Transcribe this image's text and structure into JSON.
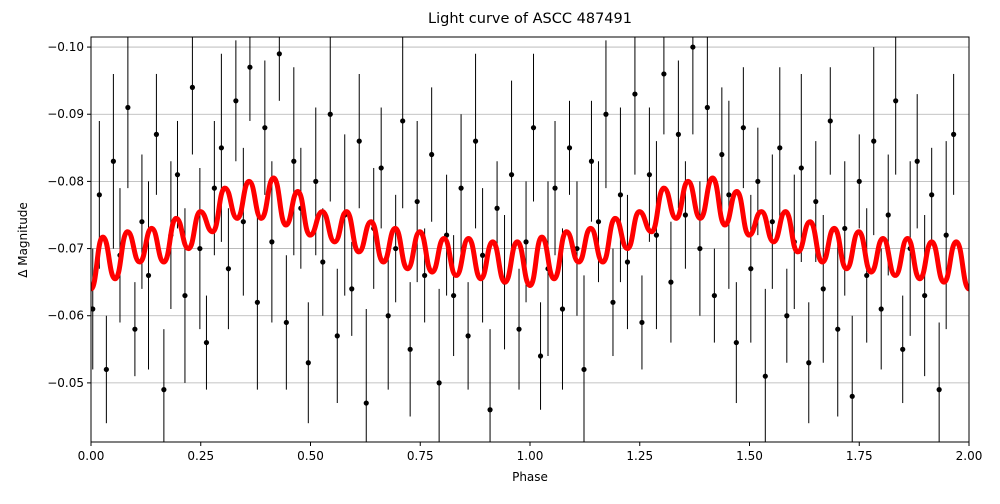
{
  "chart_data": {
    "type": "errorbar-scatter",
    "title": "Light curve of ASCC 487491",
    "xlabel": "Phase",
    "ylabel": "Δ Magnitude",
    "xlim": [
      0,
      2
    ],
    "ylim": [
      -0.1015,
      -0.0412
    ],
    "y_inverted": true,
    "grid": "y",
    "xticks": [
      {
        "value": 0,
        "label": "0.00"
      },
      {
        "value": 0.25,
        "label": "0.25"
      },
      {
        "value": 0.5,
        "label": "0.50"
      },
      {
        "value": 0.75,
        "label": "0.75"
      },
      {
        "value": 1,
        "label": "1.00"
      },
      {
        "value": 1.25,
        "label": "1.25"
      },
      {
        "value": 1.5,
        "label": "1.50"
      },
      {
        "value": 1.75,
        "label": "1.75"
      },
      {
        "value": 2,
        "label": "2.00"
      }
    ],
    "yticks": [
      {
        "value": -0.1,
        "label": "−0.10"
      },
      {
        "value": -0.09,
        "label": "−0.09"
      },
      {
        "value": -0.08,
        "label": "−0.08"
      },
      {
        "value": -0.07,
        "label": "−0.07"
      },
      {
        "value": -0.06,
        "label": "−0.06"
      },
      {
        "value": -0.05,
        "label": "−0.05"
      }
    ],
    "points": {
      "color": "#000000",
      "x": [
        0.004,
        0.019,
        0.035,
        0.051,
        0.066,
        0.084,
        0.1,
        0.116,
        0.131,
        0.149,
        0.166,
        0.182,
        0.197,
        0.214,
        0.231,
        0.248,
        0.263,
        0.281,
        0.297,
        0.313,
        0.33,
        0.347,
        0.362,
        0.379,
        0.396,
        0.412,
        0.429,
        0.445,
        0.462,
        0.478,
        0.495,
        0.512,
        0.528,
        0.545,
        0.561,
        0.578,
        0.594,
        0.611,
        0.627,
        0.644,
        0.661,
        0.677,
        0.694,
        0.71,
        0.727,
        0.743,
        0.76,
        0.776,
        0.793,
        0.81,
        0.826,
        0.843,
        0.859,
        0.876,
        0.892,
        0.909,
        0.925,
        0.942,
        0.958,
        0.975,
        0.991,
        1.008,
        1.024,
        1.041,
        1.057,
        1.074,
        1.09,
        1.107,
        1.123,
        1.14,
        1.156,
        1.173,
        1.189,
        1.206,
        1.222,
        1.239,
        1.255,
        1.272,
        1.288,
        1.305,
        1.321,
        1.338,
        1.354,
        1.371,
        1.387,
        1.404,
        1.42,
        1.437,
        1.453,
        1.47,
        1.486,
        1.503,
        1.519,
        1.536,
        1.552,
        1.569,
        1.585,
        1.602,
        1.618,
        1.635,
        1.651,
        1.668,
        1.684,
        1.701,
        1.717,
        1.734,
        1.75,
        1.767,
        1.783,
        1.8,
        1.816,
        1.833,
        1.849,
        1.866,
        1.882,
        1.899,
        1.915,
        1.932,
        1.948,
        1.965
      ],
      "y": [
        -0.061,
        -0.078,
        -0.052,
        -0.083,
        -0.069,
        -0.091,
        -0.058,
        -0.074,
        -0.066,
        -0.087,
        -0.049,
        -0.072,
        -0.081,
        -0.063,
        -0.094,
        -0.07,
        -0.056,
        -0.079,
        -0.085,
        -0.067,
        -0.092,
        -0.074,
        -0.097,
        -0.062,
        -0.088,
        -0.071,
        -0.099,
        -0.059,
        -0.083,
        -0.076,
        -0.053,
        -0.08,
        -0.068,
        -0.09,
        -0.057,
        -0.075,
        -0.064,
        -0.086,
        -0.047,
        -0.073,
        -0.082,
        -0.06,
        -0.07,
        -0.089,
        -0.055,
        -0.077,
        -0.066,
        -0.084,
        -0.05,
        -0.072,
        -0.063,
        -0.079,
        -0.057,
        -0.086,
        -0.069,
        -0.046,
        -0.076,
        -0.065,
        -0.081,
        -0.058,
        -0.071,
        -0.088,
        -0.054,
        -0.067,
        -0.079,
        -0.061,
        -0.085,
        -0.07,
        -0.052,
        -0.083,
        -0.074,
        -0.09,
        -0.062,
        -0.078,
        -0.068,
        -0.093,
        -0.059,
        -0.081,
        -0.072,
        -0.096,
        -0.065,
        -0.087,
        -0.075,
        -0.1,
        -0.07,
        -0.091,
        -0.063,
        -0.084,
        -0.078,
        -0.056,
        -0.088,
        -0.067,
        -0.08,
        -0.051,
        -0.074,
        -0.085,
        -0.06,
        -0.071,
        -0.082,
        -0.053,
        -0.077,
        -0.064,
        -0.089,
        -0.058,
        -0.073,
        -0.048,
        -0.08,
        -0.066,
        -0.086,
        -0.061,
        -0.075,
        -0.092,
        -0.055,
        -0.07,
        -0.083,
        -0.063,
        -0.078,
        -0.049,
        -0.072,
        -0.087
      ],
      "yerr": [
        0.009,
        0.011,
        0.008,
        0.013,
        0.01,
        0.012,
        0.007,
        0.01,
        0.014,
        0.009,
        0.009,
        0.011,
        0.008,
        0.013,
        0.01,
        0.012,
        0.007,
        0.01,
        0.014,
        0.009,
        0.009,
        0.011,
        0.008,
        0.013,
        0.01,
        0.012,
        0.007,
        0.01,
        0.014,
        0.009,
        0.009,
        0.011,
        0.008,
        0.013,
        0.01,
        0.012,
        0.007,
        0.01,
        0.014,
        0.009,
        0.009,
        0.011,
        0.008,
        0.013,
        0.01,
        0.012,
        0.007,
        0.01,
        0.014,
        0.009,
        0.009,
        0.011,
        0.008,
        0.013,
        0.01,
        0.012,
        0.007,
        0.01,
        0.014,
        0.009,
        0.009,
        0.011,
        0.008,
        0.013,
        0.01,
        0.012,
        0.007,
        0.01,
        0.014,
        0.009,
        0.009,
        0.011,
        0.008,
        0.013,
        0.01,
        0.012,
        0.007,
        0.01,
        0.014,
        0.009,
        0.009,
        0.011,
        0.008,
        0.013,
        0.01,
        0.012,
        0.007,
        0.01,
        0.014,
        0.009,
        0.009,
        0.011,
        0.008,
        0.013,
        0.01,
        0.012,
        0.007,
        0.01,
        0.014,
        0.009,
        0.009,
        0.011,
        0.008,
        0.013,
        0.01,
        0.012,
        0.007,
        0.01,
        0.014,
        0.009,
        0.009,
        0.011,
        0.008,
        0.013,
        0.01,
        0.012,
        0.007,
        0.01,
        0.014,
        0.009
      ]
    },
    "model": {
      "color": "#ff0000",
      "x": [
        0,
        0.027,
        0.055,
        0.083,
        0.111,
        0.138,
        0.166,
        0.194,
        0.222,
        0.249,
        0.277,
        0.305,
        0.333,
        0.36,
        0.388,
        0.416,
        0.444,
        0.471,
        0.499,
        0.527,
        0.555,
        0.582,
        0.61,
        0.638,
        0.666,
        0.693,
        0.721,
        0.749,
        0.777,
        0.804,
        0.832,
        0.86,
        0.888,
        0.915,
        0.943,
        0.971,
        1.0,
        1.027,
        1.055,
        1.083,
        1.111,
        1.138,
        1.166,
        1.194,
        1.222,
        1.249,
        1.277,
        1.305,
        1.333,
        1.36,
        1.388,
        1.416,
        1.444,
        1.471,
        1.499,
        1.527,
        1.555,
        1.582,
        1.61,
        1.638,
        1.666,
        1.693,
        1.721,
        1.749,
        1.777,
        1.804,
        1.832,
        1.86,
        1.888,
        1.915,
        1.943,
        1.971,
        2.0
      ],
      "values": [
        -0.064,
        -0.0717,
        -0.0655,
        -0.0725,
        -0.068,
        -0.073,
        -0.068,
        -0.0745,
        -0.07,
        -0.0755,
        -0.0725,
        -0.079,
        -0.0745,
        -0.08,
        -0.0745,
        -0.0805,
        -0.0735,
        -0.0785,
        -0.072,
        -0.0755,
        -0.071,
        -0.0755,
        -0.0695,
        -0.074,
        -0.068,
        -0.073,
        -0.067,
        -0.0725,
        -0.0665,
        -0.0715,
        -0.066,
        -0.0715,
        -0.0655,
        -0.071,
        -0.065,
        -0.071,
        -0.0645,
        -0.0717,
        -0.0655,
        -0.0725,
        -0.068,
        -0.073,
        -0.068,
        -0.0745,
        -0.07,
        -0.0755,
        -0.0725,
        -0.079,
        -0.0745,
        -0.08,
        -0.0745,
        -0.0805,
        -0.0735,
        -0.0785,
        -0.072,
        -0.0755,
        -0.071,
        -0.0755,
        -0.0695,
        -0.074,
        -0.068,
        -0.073,
        -0.067,
        -0.0725,
        -0.0665,
        -0.0715,
        -0.066,
        -0.0715,
        -0.0655,
        -0.071,
        -0.065,
        -0.071,
        -0.064
      ]
    }
  }
}
